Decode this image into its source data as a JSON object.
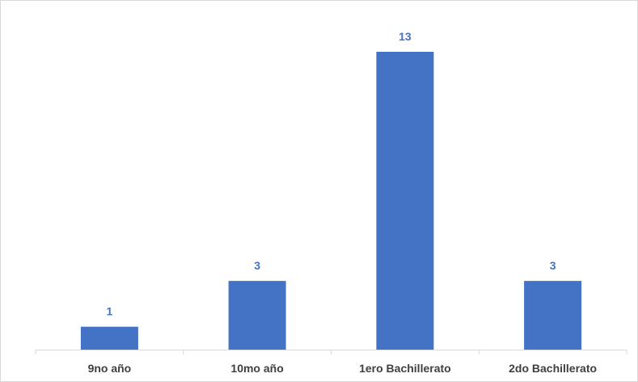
{
  "chart_data": {
    "type": "bar",
    "title": "",
    "xlabel": "",
    "ylabel": "",
    "categories": [
      "9no año",
      "10mo año",
      "1ero Bachillerato",
      "2do Bachillerato"
    ],
    "values": [
      1,
      3,
      13,
      3
    ],
    "ylim": [
      0,
      13
    ],
    "grid": false,
    "legend": "none",
    "data_labels": true,
    "colors": {
      "bar": "#4472c4",
      "data_label": "#4472c4",
      "category_label": "#404040",
      "axis_line": "#d9d9d9"
    }
  }
}
